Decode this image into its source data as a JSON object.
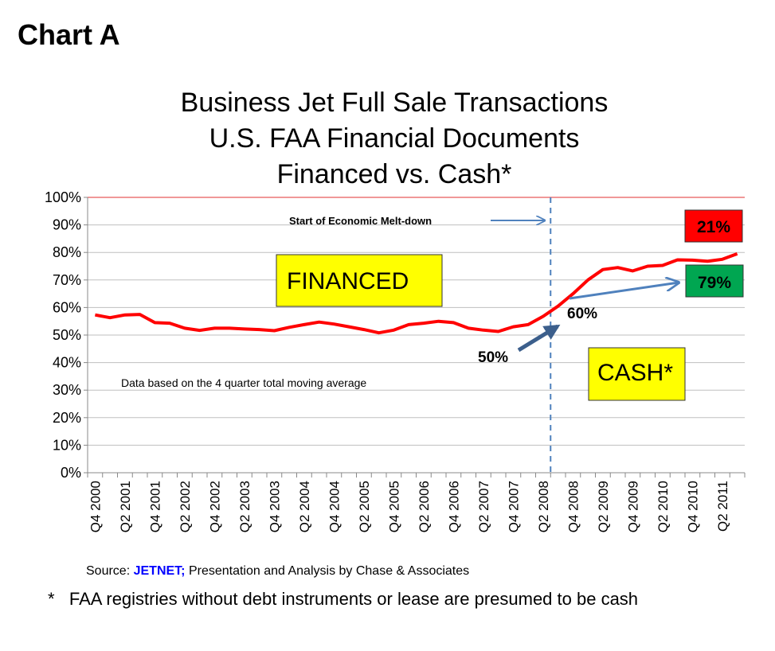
{
  "header": "Chart A",
  "footnote": "*   FAA registries without debt instruments or lease are presumed to be cash",
  "source": {
    "prefix": "Source: ",
    "brand": "JETNET;",
    "rest": " Presentation and Analysis by Chase & Associates"
  },
  "colors": {
    "line": "#ff0000",
    "brand": "#0000ff",
    "yellow": "#ffff00",
    "red_box": "#ff0000",
    "green_box": "#00a651",
    "arrow": "#4f81bd",
    "arrow_dark": "#3c5f8c",
    "grid": "#bfbfbf"
  },
  "chart_data": {
    "type": "line",
    "title": [
      "Business Jet Full Sale Transactions",
      "U.S. FAA Financial Documents",
      "Financed vs. Cash*"
    ],
    "xlabel": "",
    "ylabel": "",
    "ylim": [
      0,
      100
    ],
    "yticks": [
      "0%",
      "10%",
      "20%",
      "30%",
      "40%",
      "50%",
      "60%",
      "70%",
      "80%",
      "90%",
      "100%"
    ],
    "grid": true,
    "x_count": 44,
    "xtick_labels": [
      "Q4 2000",
      "Q2 2001",
      "Q4 2001",
      "Q2 2002",
      "Q4 2002",
      "Q2 2003",
      "Q4 2003",
      "Q2 2004",
      "Q4 2004",
      "Q2 2005",
      "Q4 2005",
      "Q2 2006",
      "Q4 2006",
      "Q2 2007",
      "Q4 2007",
      "Q2 2008",
      "Q4 2008",
      "Q2 2009",
      "Q4 2009",
      "Q2 2010",
      "Q4 2010",
      "Q2 2011"
    ],
    "series": [
      {
        "name": "Financed share",
        "values": [
          57.3,
          56.3,
          57.3,
          57.5,
          54.5,
          54.3,
          52.5,
          51.7,
          52.5,
          52.5,
          52.2,
          52.0,
          51.6,
          52.8,
          53.8,
          54.7,
          54.0,
          53.0,
          52.0,
          50.8,
          51.8,
          53.8,
          54.3,
          55.0,
          54.5,
          52.5,
          51.8,
          51.3,
          53.0,
          53.8,
          56.8,
          60.5,
          65.0,
          70.0,
          73.8,
          74.5,
          73.3,
          75.0,
          75.3,
          77.3,
          77.2,
          76.8,
          77.5,
          79.5
        ]
      }
    ],
    "event_line_index": 30.5,
    "annotations": {
      "event": "Start of Economic Melt-down",
      "financed": "FINANCED",
      "cash": "CASH*",
      "note": "Data based on the 4 quarter total moving average",
      "pct50": "50%",
      "pct60": "60%",
      "pct21": "21%",
      "pct79": "79%"
    }
  }
}
